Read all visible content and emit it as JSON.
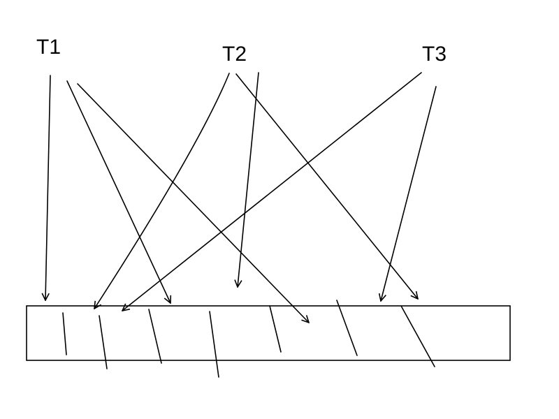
{
  "diagram": {
    "threads": [
      {
        "id": "T1",
        "label": "T1"
      },
      {
        "id": "T2",
        "label": "T2"
      },
      {
        "id": "T3",
        "label": "T3"
      }
    ],
    "colors": {
      "line": "#000000",
      "background": "#ffffff"
    }
  }
}
